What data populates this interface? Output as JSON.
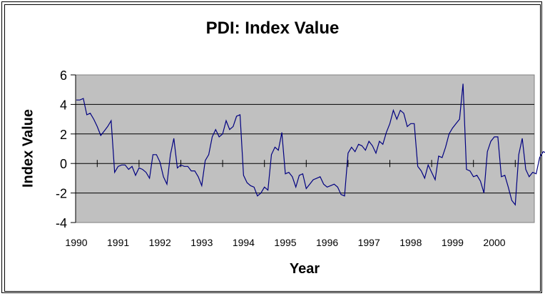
{
  "chart_data": {
    "type": "line",
    "title": "PDI: Index Value",
    "xlabel": "Year",
    "ylabel": "Index Value",
    "ylim": [
      -4,
      6
    ],
    "yticks": [
      "6",
      "4",
      "2",
      "0",
      "-2",
      "-4"
    ],
    "xtick_labels": [
      "1990",
      "1991",
      "1992",
      "1993",
      "1994",
      "1995",
      "1996",
      "1997",
      "1998",
      "1999",
      "2000"
    ],
    "grid": true,
    "legend": null,
    "colors": {
      "plot_bg": "#c0c0c0",
      "line": "#000080",
      "grid": "#000000"
    },
    "series": [
      {
        "name": "PDI Index Value",
        "frequency": "monthly",
        "start": "1990-01",
        "values": [
          4.3,
          4.3,
          4.4,
          3.3,
          3.4,
          3.0,
          2.5,
          1.9,
          2.2,
          2.5,
          2.9,
          -0.6,
          -0.2,
          -0.1,
          -0.1,
          -0.4,
          -0.2,
          -0.8,
          -0.3,
          -0.4,
          -0.6,
          -1.0,
          0.6,
          0.6,
          0.1,
          -0.9,
          -1.4,
          0.6,
          1.7,
          -0.3,
          -0.1,
          -0.2,
          -0.2,
          -0.5,
          -0.5,
          -0.9,
          -1.5,
          0.2,
          0.6,
          1.8,
          2.3,
          1.8,
          2.0,
          2.9,
          2.3,
          2.5,
          3.2,
          3.3,
          -0.8,
          -1.3,
          -1.5,
          -1.6,
          -2.2,
          -2.0,
          -1.6,
          -1.8,
          0.6,
          1.1,
          0.9,
          2.1,
          -0.7,
          -0.6,
          -0.9,
          -1.6,
          -0.8,
          -0.7,
          -1.7,
          -1.4,
          -1.1,
          -1.0,
          -0.9,
          -1.4,
          -1.6,
          -1.5,
          -1.4,
          -1.6,
          -2.1,
          -2.2,
          0.7,
          1.1,
          0.8,
          1.3,
          1.2,
          0.9,
          1.5,
          1.2,
          0.7,
          1.5,
          1.3,
          2.1,
          2.7,
          3.6,
          3.0,
          3.6,
          3.4,
          2.5,
          2.7,
          2.7,
          -0.2,
          -0.5,
          -1.0,
          -0.1,
          -0.6,
          -1.1,
          0.5,
          0.4,
          1.1,
          2.0,
          2.4,
          2.7,
          3.0,
          5.4,
          -0.4,
          -0.5,
          -0.9,
          -0.8,
          -1.2,
          -2.0,
          0.8,
          1.5,
          1.8,
          1.8,
          -0.9,
          -0.8,
          -1.6,
          -2.5,
          -2.8,
          0.6,
          1.7,
          -0.4,
          -0.9,
          -0.6,
          -0.7,
          0.4,
          0.8,
          0.7,
          1.3,
          1.6,
          1.4
        ]
      }
    ]
  }
}
